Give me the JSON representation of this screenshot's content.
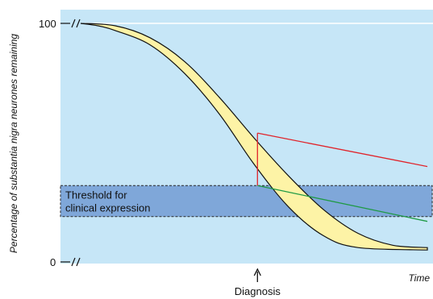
{
  "chart_data": {
    "type": "area",
    "ylabel": "Percentage of substantia nigra neurones remaining",
    "xlabel": "Time",
    "y_ticks": [
      "100",
      "0"
    ],
    "ylim": [
      0,
      100
    ],
    "xlim": [
      0,
      100
    ],
    "threshold_band": {
      "label_line1": "Threshold for",
      "label_line2": "clinical expression",
      "y_low": 19,
      "y_high": 32
    },
    "upper_curve": [
      [
        0,
        100
      ],
      [
        10,
        99
      ],
      [
        20,
        94
      ],
      [
        30,
        84
      ],
      [
        40,
        69
      ],
      [
        50,
        52
      ],
      [
        60,
        36
      ],
      [
        70,
        22
      ],
      [
        80,
        12
      ],
      [
        90,
        7
      ],
      [
        100,
        6
      ]
    ],
    "lower_curve": [
      [
        0,
        100
      ],
      [
        5,
        99
      ],
      [
        10,
        97
      ],
      [
        20,
        91
      ],
      [
        30,
        79
      ],
      [
        40,
        62
      ],
      [
        50,
        41
      ],
      [
        60,
        23
      ],
      [
        70,
        11
      ],
      [
        80,
        6
      ],
      [
        100,
        5
      ]
    ],
    "diagnosis": {
      "label": "Diagnosis",
      "x": 51,
      "y_start": 32,
      "y_top": 54
    },
    "red_line": {
      "x": [
        51,
        100
      ],
      "y": [
        54,
        40
      ]
    },
    "green_line": {
      "x": [
        51,
        100
      ],
      "y": [
        32,
        17
      ]
    },
    "colors": {
      "background": "#c6e6f7",
      "band_fill": "#7fa7d9",
      "band_stroke": "#2a2a2a",
      "curve_fill": "#fdf3a6",
      "curve_stroke": "#111111",
      "red": "#e0242b",
      "green": "#1f9a45",
      "gridline": "#ffffff"
    }
  }
}
